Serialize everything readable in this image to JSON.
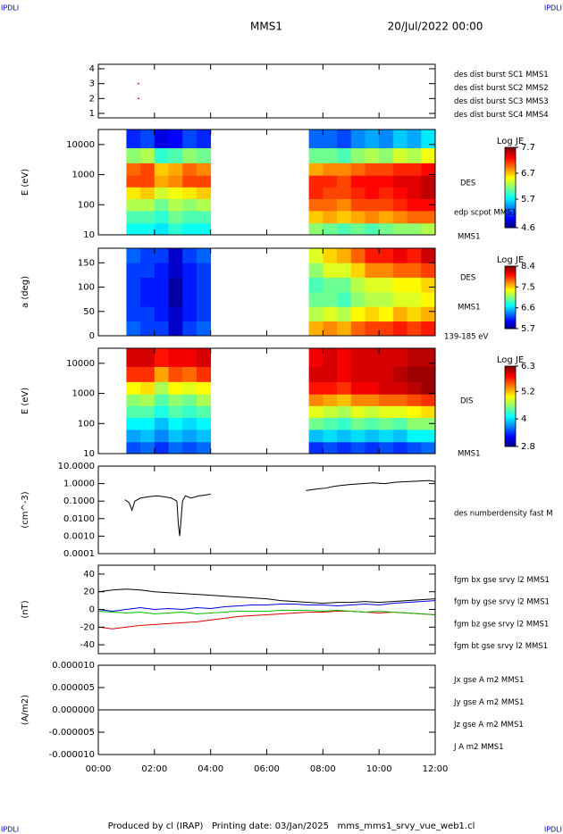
{
  "header": {
    "corner_labels": [
      "IPDLI",
      "IPDLI",
      "IPDLI",
      "IPDLI"
    ],
    "title": "MMS1",
    "date": "20/Jul/2022 00:00"
  },
  "footer": "Produced by cl (IRAP)   Printing date: 03/Jan/2025   mms_mms1_srvy_vue_web1.cl",
  "chart_data": [
    {
      "type": "scatter",
      "xlim": [
        0,
        12
      ],
      "ylim": [
        0.7,
        4.3
      ],
      "yticks": [
        1,
        2,
        3,
        4
      ],
      "series": [
        {
          "name": "des dist burst SC1 MMS1",
          "color": "#0000ff",
          "x": [],
          "values": []
        },
        {
          "name": "des dist burst SC2 MMS2",
          "color": "#e000e0",
          "x": [],
          "values": []
        },
        {
          "name": "des dist burst SC3 MMS3",
          "color": "#e00000",
          "x": [
            1.43,
            1.43
          ],
          "values": [
            3,
            2
          ]
        },
        {
          "name": "des dist burst SC4 MMS4",
          "color": "#00c000",
          "x": [],
          "values": []
        }
      ]
    },
    {
      "type": "heatmap",
      "ylabel": "E (eV)",
      "log_y": true,
      "xlim": [
        0,
        12
      ],
      "ylim": [
        10,
        31623
      ],
      "yticks": [
        10,
        100,
        1000,
        10000
      ],
      "x": [
        0.25,
        0.75,
        1.25,
        1.75,
        2.25,
        2.75,
        3.25,
        3.75,
        4.25,
        4.75,
        5.25,
        5.75,
        6.25,
        6.75,
        7.25,
        7.75,
        8.25,
        8.75,
        9.25,
        9.75,
        10.25,
        10.75,
        11.25,
        11.75
      ],
      "y": [
        15,
        40,
        100,
        250,
        600,
        1500,
        4000,
        15000
      ],
      "z": [
        [
          null,
          null,
          5.8,
          5.8,
          5.7,
          5.9,
          5.8,
          5.8,
          null,
          null,
          null,
          null,
          null,
          null,
          null,
          6.2,
          6.1,
          6.0,
          6.1,
          6.0,
          6.1,
          6.2,
          6.2,
          6.3
        ],
        [
          null,
          null,
          6.0,
          6.0,
          5.9,
          6.1,
          6.0,
          6.0,
          null,
          null,
          null,
          null,
          null,
          null,
          null,
          6.7,
          6.8,
          6.7,
          6.8,
          6.9,
          6.8,
          6.9,
          7.0,
          7.0
        ],
        [
          null,
          null,
          6.3,
          6.3,
          6.1,
          6.3,
          6.2,
          6.3,
          null,
          null,
          null,
          null,
          null,
          null,
          null,
          7.0,
          7.0,
          6.9,
          7.1,
          7.1,
          7.1,
          7.2,
          7.3,
          7.3
        ],
        [
          null,
          null,
          6.6,
          6.7,
          6.4,
          6.5,
          6.6,
          6.7,
          null,
          null,
          null,
          null,
          null,
          null,
          null,
          7.2,
          7.1,
          7.1,
          7.2,
          7.3,
          7.2,
          7.3,
          7.4,
          7.5
        ],
        [
          null,
          null,
          7.1,
          7.1,
          6.8,
          6.9,
          7.1,
          7.1,
          null,
          null,
          null,
          null,
          null,
          null,
          null,
          7.2,
          7.2,
          7.1,
          7.3,
          7.3,
          7.3,
          7.4,
          7.4,
          7.5
        ],
        [
          null,
          null,
          7.0,
          7.1,
          6.7,
          6.8,
          7.0,
          6.9,
          null,
          null,
          null,
          null,
          null,
          null,
          null,
          6.8,
          6.9,
          6.9,
          7.0,
          7.1,
          7.1,
          7.2,
          7.2,
          7.3
        ],
        [
          null,
          null,
          6.2,
          6.3,
          5.9,
          6.0,
          6.2,
          6.1,
          null,
          null,
          null,
          null,
          null,
          null,
          null,
          6.1,
          6.1,
          6.0,
          6.2,
          6.3,
          6.2,
          6.4,
          6.3,
          6.5
        ],
        [
          null,
          null,
          5.1,
          5.2,
          4.9,
          5.0,
          5.2,
          5.1,
          null,
          null,
          null,
          null,
          null,
          null,
          null,
          5.3,
          5.3,
          5.2,
          5.4,
          5.5,
          5.4,
          5.6,
          5.5,
          5.7
        ]
      ],
      "colorbar": {
        "title": "Log JE",
        "clim": [
          4.6,
          7.7
        ],
        "ticks": [
          4.6,
          5.7,
          6.7,
          7.7
        ]
      },
      "annotations": [
        "DES",
        "edp scpot MMS1",
        "MMS1"
      ]
    },
    {
      "type": "heatmap",
      "ylabel": "a (deg)",
      "xlim": [
        0,
        12
      ],
      "ylim": [
        0,
        180
      ],
      "yticks": [
        0,
        50,
        100,
        150
      ],
      "x": [
        0.25,
        0.75,
        1.25,
        1.75,
        2.25,
        2.75,
        3.25,
        3.75,
        4.25,
        4.75,
        5.25,
        5.75,
        6.25,
        6.75,
        7.25,
        7.75,
        8.25,
        8.75,
        9.25,
        9.75,
        10.25,
        10.75,
        11.25,
        11.75
      ],
      "y": [
        15,
        45,
        75,
        105,
        135,
        165
      ],
      "z": [
        [
          null,
          null,
          6.3,
          6.2,
          6.2,
          5.9,
          6.2,
          6.3,
          null,
          null,
          null,
          null,
          null,
          null,
          null,
          7.6,
          7.7,
          7.6,
          7.8,
          7.9,
          7.9,
          8.0,
          7.9,
          8.0
        ],
        [
          null,
          null,
          6.2,
          6.2,
          6.1,
          5.9,
          6.1,
          6.2,
          null,
          null,
          null,
          null,
          null,
          null,
          null,
          7.2,
          7.3,
          7.2,
          7.4,
          7.5,
          7.4,
          7.6,
          7.5,
          7.6
        ],
        [
          null,
          null,
          6.2,
          6.1,
          6.1,
          5.8,
          6.1,
          6.2,
          null,
          null,
          null,
          null,
          null,
          null,
          null,
          7.0,
          7.0,
          6.9,
          7.1,
          7.2,
          7.2,
          7.3,
          7.3,
          7.4
        ],
        [
          null,
          null,
          6.2,
          6.1,
          6.1,
          5.8,
          6.1,
          6.2,
          null,
          null,
          null,
          null,
          null,
          null,
          null,
          6.9,
          7.0,
          7.0,
          7.2,
          7.3,
          7.3,
          7.4,
          7.4,
          7.5
        ],
        [
          null,
          null,
          6.2,
          6.2,
          6.1,
          5.9,
          6.1,
          6.2,
          null,
          null,
          null,
          null,
          null,
          null,
          null,
          7.1,
          7.3,
          7.3,
          7.5,
          7.7,
          7.7,
          7.8,
          7.8,
          7.9
        ],
        [
          null,
          null,
          6.3,
          6.2,
          6.2,
          5.9,
          6.2,
          6.3,
          null,
          null,
          null,
          null,
          null,
          null,
          null,
          7.3,
          7.5,
          7.6,
          7.8,
          8.0,
          8.0,
          8.1,
          8.0,
          8.2
        ]
      ],
      "colorbar": {
        "title": "Log JE",
        "clim": [
          5.7,
          8.4
        ],
        "ticks": [
          5.7,
          6.6,
          7.5,
          8.4
        ]
      },
      "annotations": [
        "DES",
        "MMS1",
        "139-185 eV"
      ]
    },
    {
      "type": "heatmap",
      "ylabel": "E (eV)",
      "log_y": true,
      "xlim": [
        0,
        12
      ],
      "ylim": [
        10,
        31623
      ],
      "yticks": [
        10,
        100,
        1000,
        10000
      ],
      "x": [
        0.25,
        0.75,
        1.25,
        1.75,
        2.25,
        2.75,
        3.25,
        3.75,
        4.25,
        4.75,
        5.25,
        5.75,
        6.25,
        6.75,
        7.25,
        7.75,
        8.25,
        8.75,
        9.25,
        9.75,
        10.25,
        10.75,
        11.25,
        11.75
      ],
      "y": [
        15,
        40,
        100,
        250,
        600,
        1500,
        4000,
        15000
      ],
      "z": [
        [
          null,
          null,
          3.5,
          3.6,
          3.4,
          3.6,
          3.5,
          3.6,
          null,
          null,
          null,
          null,
          null,
          null,
          null,
          3.4,
          3.5,
          3.4,
          3.5,
          3.4,
          3.5,
          3.4,
          3.5,
          3.6
        ],
        [
          null,
          null,
          3.8,
          3.9,
          3.7,
          3.9,
          3.8,
          3.9,
          null,
          null,
          null,
          null,
          null,
          null,
          null,
          3.9,
          4.0,
          3.9,
          4.0,
          3.9,
          4.0,
          3.9,
          4.1,
          4.1
        ],
        [
          null,
          null,
          4.1,
          4.1,
          3.9,
          4.1,
          4.0,
          4.1,
          null,
          null,
          null,
          null,
          null,
          null,
          null,
          4.5,
          4.4,
          4.3,
          4.5,
          4.4,
          4.5,
          4.4,
          4.6,
          4.6
        ],
        [
          null,
          null,
          4.4,
          4.4,
          4.2,
          4.4,
          4.3,
          4.4,
          null,
          null,
          null,
          null,
          null,
          null,
          null,
          4.9,
          4.8,
          4.7,
          4.9,
          4.8,
          4.9,
          4.9,
          5.0,
          5.1
        ],
        [
          null,
          null,
          4.6,
          4.7,
          4.4,
          4.6,
          4.5,
          4.7,
          null,
          null,
          null,
          null,
          null,
          null,
          null,
          5.4,
          5.3,
          5.2,
          5.4,
          5.4,
          5.5,
          5.5,
          5.6,
          5.7
        ],
        [
          null,
          null,
          5.0,
          5.1,
          4.7,
          5.0,
          4.9,
          5.0,
          null,
          null,
          null,
          null,
          null,
          null,
          null,
          5.8,
          5.8,
          5.7,
          5.9,
          5.9,
          6.0,
          6.0,
          6.1,
          6.2
        ],
        [
          null,
          null,
          5.7,
          5.7,
          5.3,
          5.6,
          5.5,
          5.7,
          null,
          null,
          null,
          null,
          null,
          null,
          null,
          6.0,
          6.0,
          5.9,
          6.0,
          6.0,
          6.0,
          6.1,
          6.2,
          6.2
        ],
        [
          null,
          null,
          6.0,
          6.0,
          5.8,
          5.9,
          5.9,
          6.0,
          null,
          null,
          null,
          null,
          null,
          null,
          null,
          5.9,
          6.0,
          5.9,
          6.0,
          6.0,
          6.0,
          6.0,
          6.1,
          6.1
        ]
      ],
      "colorbar": {
        "title": "Log JE",
        "clim": [
          2.8,
          6.3
        ],
        "ticks": [
          2.8,
          4.0,
          5.2,
          6.3
        ]
      },
      "annotations": [
        "DIS",
        "MMS1"
      ]
    },
    {
      "type": "line",
      "ylabel": "(cm^-3)",
      "log_y": true,
      "xlim": [
        0,
        12
      ],
      "ylim": [
        0.0001,
        10
      ],
      "yticks": [
        {
          "value": 10,
          "label": "10.0000"
        },
        {
          "value": 1,
          "label": "1.0000"
        },
        {
          "value": 0.1,
          "label": "0.1000"
        },
        {
          "value": 0.01,
          "label": "0.0100"
        },
        {
          "value": 0.001,
          "label": "0.0010"
        },
        {
          "value": 0.0001,
          "label": "0.0001"
        }
      ],
      "x": [
        0.95,
        1.1,
        1.2,
        1.3,
        1.5,
        1.8,
        2.1,
        2.4,
        2.6,
        2.8,
        2.85,
        2.9,
        2.95,
        3.0,
        3.1,
        3.3,
        3.6,
        3.8,
        4.0,
        5.7,
        7.4,
        7.8,
        8.1,
        8.4,
        8.7,
        9.0,
        9.4,
        9.8,
        10.2,
        10.6,
        11.0,
        11.4,
        11.8,
        12.0
      ],
      "series": [
        {
          "name": "des numberdensity fast M",
          "color": "#000000",
          "values": [
            0.12,
            0.08,
            0.03,
            0.1,
            0.15,
            0.18,
            0.2,
            0.17,
            0.15,
            0.1,
            0.005,
            0.001,
            0.01,
            0.1,
            0.2,
            0.15,
            0.2,
            0.22,
            0.25,
            null,
            0.4,
            0.5,
            0.55,
            0.7,
            0.8,
            0.9,
            1.0,
            1.1,
            1.0,
            1.2,
            1.3,
            1.4,
            1.5,
            1.3
          ]
        }
      ]
    },
    {
      "type": "line",
      "ylabel": "(nT)",
      "xlim": [
        0,
        12
      ],
      "ylim": [
        -50,
        50
      ],
      "yticks": [
        -40,
        -20,
        0,
        20,
        40
      ],
      "x": [
        0,
        0.5,
        1,
        1.5,
        2,
        2.5,
        3,
        3.5,
        4,
        4.5,
        5,
        5.5,
        6,
        6.5,
        7,
        7.5,
        8,
        8.5,
        9,
        9.5,
        10,
        10.5,
        11,
        11.5,
        12
      ],
      "series": [
        {
          "name": "fgm bx gse srvy l2 MMS1",
          "color": "#e00000",
          "values": [
            -20,
            -22,
            -20,
            -18,
            -17,
            -16,
            -15,
            -14,
            -12,
            -10,
            -8,
            -7,
            -6,
            -5,
            -4,
            -3,
            -3,
            -2,
            -2,
            -3,
            -4,
            -3,
            -4,
            -5,
            -6
          ]
        },
        {
          "name": "fgm by gse srvy l2 MMS1",
          "color": "#00c000",
          "values": [
            -2,
            -3,
            -4,
            -3,
            -5,
            -4,
            -3,
            -5,
            -4,
            -3,
            -2,
            -2,
            -2,
            -1,
            -1,
            -1,
            -2,
            -1,
            -2,
            -3,
            -2,
            -3,
            -4,
            -5,
            -6
          ]
        },
        {
          "name": "fgm bz gse srvy l2 MMS1",
          "color": "#0000e0",
          "values": [
            0,
            -2,
            0,
            2,
            0,
            1,
            0,
            2,
            1,
            3,
            4,
            5,
            5,
            6,
            6,
            5,
            5,
            4,
            5,
            6,
            5,
            7,
            8,
            9,
            10
          ]
        },
        {
          "name": "fgm bt gse srvy l2 MMS1",
          "color": "#000000",
          "values": [
            20,
            22,
            23,
            22,
            20,
            19,
            18,
            17,
            16,
            15,
            14,
            13,
            12,
            10,
            9,
            8,
            7,
            8,
            8,
            9,
            8,
            9,
            10,
            11,
            12
          ]
        }
      ]
    },
    {
      "type": "line",
      "ylabel": "(A/m2)",
      "xlim": [
        0,
        12
      ],
      "ylim": [
        -1e-05,
        1e-05
      ],
      "yticks": [
        {
          "value": 1e-05,
          "label": "0.000010"
        },
        {
          "value": 5e-06,
          "label": "0.000005"
        },
        {
          "value": 0,
          "label": "0.000000"
        },
        {
          "value": -5e-06,
          "label": "-0.000005"
        },
        {
          "value": -1e-05,
          "label": "-0.000010"
        }
      ],
      "xticks": [
        {
          "value": 0,
          "label": "00:00"
        },
        {
          "value": 2,
          "label": "02:00"
        },
        {
          "value": 4,
          "label": "04:00"
        },
        {
          "value": 6,
          "label": "06:00"
        },
        {
          "value": 8,
          "label": "08:00"
        },
        {
          "value": 10,
          "label": "10:00"
        },
        {
          "value": 12,
          "label": "12:00"
        }
      ],
      "x": [
        0,
        12
      ],
      "series": [
        {
          "name": "Jx gse A m2 MMS1",
          "color": "#e00000",
          "values": [
            0,
            0
          ]
        },
        {
          "name": "Jy gse A m2 MMS1",
          "color": "#00c000",
          "values": [
            0,
            0
          ]
        },
        {
          "name": "Jz gse A m2 MMS1",
          "color": "#0000e0",
          "values": [
            0,
            0
          ]
        },
        {
          "name": "J A m2 MMS1",
          "color": "#000000",
          "values": [
            0,
            0
          ]
        }
      ]
    }
  ]
}
